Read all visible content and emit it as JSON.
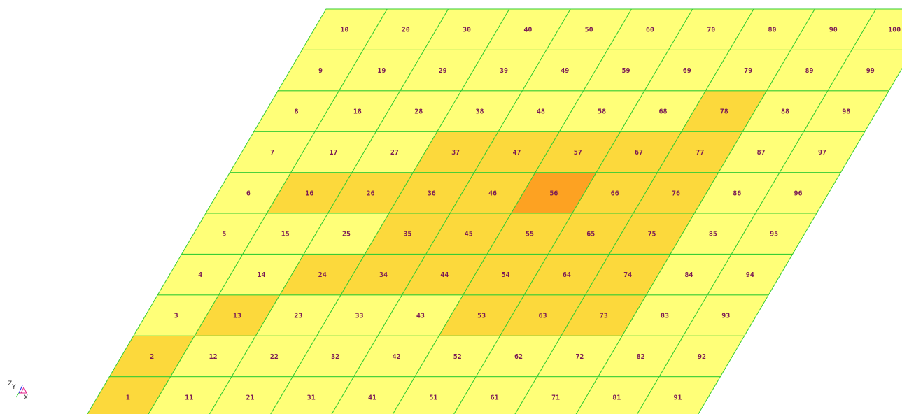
{
  "mesh": {
    "rows": 10,
    "cols": 10,
    "cell_labels": [
      [
        "1",
        "11",
        "21",
        "31",
        "41",
        "51",
        "61",
        "71",
        "81",
        "91"
      ],
      [
        "2",
        "12",
        "22",
        "32",
        "42",
        "52",
        "62",
        "72",
        "82",
        "92"
      ],
      [
        "3",
        "13",
        "23",
        "33",
        "43",
        "53",
        "63",
        "73",
        "83",
        "93"
      ],
      [
        "4",
        "14",
        "24",
        "34",
        "44",
        "54",
        "64",
        "74",
        "84",
        "94"
      ],
      [
        "5",
        "15",
        "25",
        "35",
        "45",
        "55",
        "65",
        "75",
        "85",
        "95"
      ],
      [
        "6",
        "16",
        "26",
        "36",
        "46",
        "56",
        "66",
        "76",
        "86",
        "96"
      ],
      [
        "7",
        "17",
        "27",
        "37",
        "47",
        "57",
        "67",
        "77",
        "87",
        "97"
      ],
      [
        "8",
        "18",
        "28",
        "38",
        "48",
        "58",
        "68",
        "78",
        "88",
        "98"
      ],
      [
        "9",
        "19",
        "29",
        "39",
        "49",
        "59",
        "69",
        "79",
        "89",
        "99"
      ],
      [
        "10",
        "20",
        "30",
        "40",
        "50",
        "60",
        "70",
        "80",
        "90",
        "100"
      ]
    ],
    "shade_levels": [
      [
        1,
        0,
        0,
        0,
        0,
        0,
        0,
        0,
        0,
        0
      ],
      [
        1,
        0,
        0,
        0,
        0,
        0,
        0,
        0,
        0,
        0
      ],
      [
        0,
        1,
        0,
        0,
        0,
        1,
        1,
        1,
        0,
        0
      ],
      [
        0,
        0,
        1,
        1,
        1,
        1,
        1,
        1,
        0,
        0
      ],
      [
        0,
        0,
        0,
        1,
        1,
        1,
        1,
        1,
        0,
        0
      ],
      [
        0,
        1,
        1,
        1,
        1,
        2,
        1,
        1,
        0,
        0
      ],
      [
        0,
        0,
        0,
        1,
        1,
        1,
        1,
        1,
        0,
        0
      ],
      [
        0,
        0,
        0,
        0,
        0,
        0,
        0,
        1,
        0,
        0
      ],
      [
        0,
        0,
        0,
        0,
        0,
        0,
        0,
        0,
        0,
        0
      ],
      [
        0,
        0,
        0,
        0,
        0,
        0,
        0,
        0,
        0,
        0
      ]
    ],
    "shade_colors": [
      "#ffff78",
      "#fcd93c",
      "#fda222"
    ],
    "edge_color": "#33cc33",
    "label_color": "#7a1a55"
  },
  "triad": {
    "z_label": "Z",
    "y_label": "Y",
    "x_label": "X",
    "colors": {
      "x": "#e0208a",
      "y": "#33cc33",
      "z": "#2a2aee"
    }
  }
}
